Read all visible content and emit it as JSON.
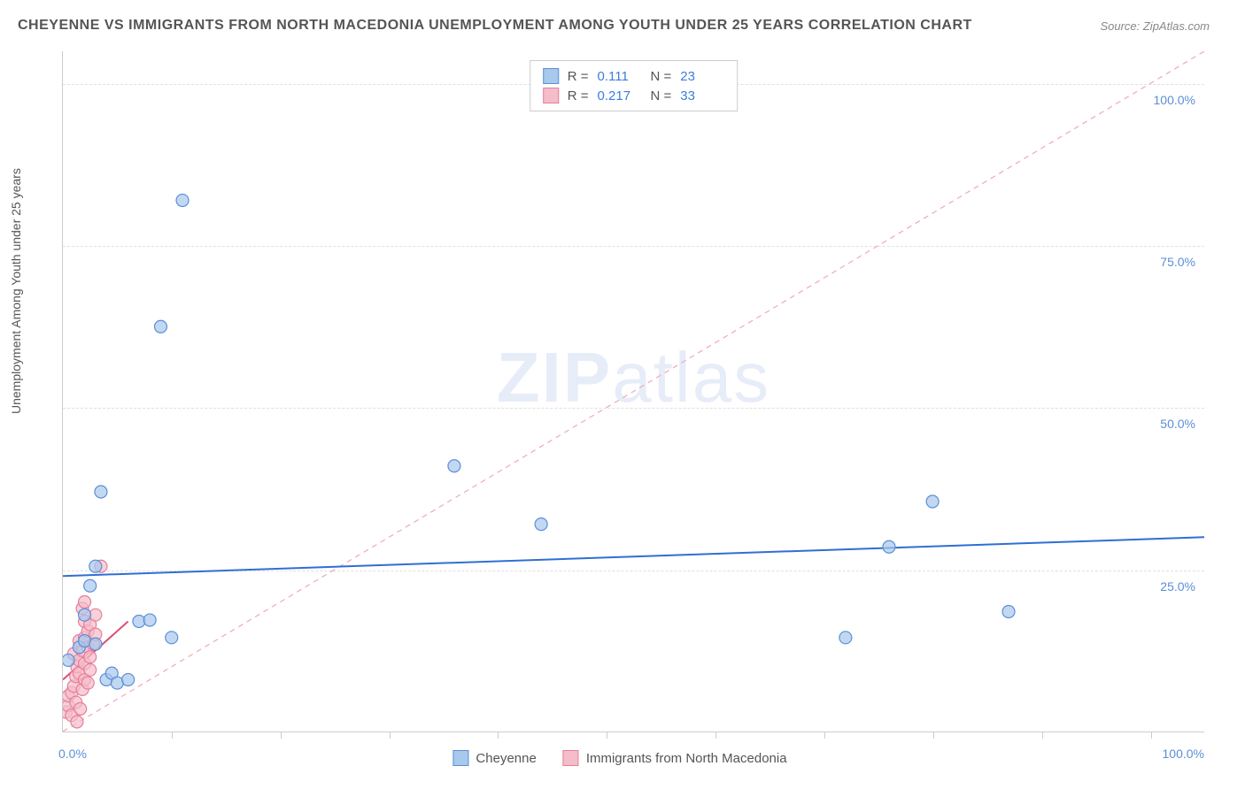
{
  "title": "CHEYENNE VS IMMIGRANTS FROM NORTH MACEDONIA UNEMPLOYMENT AMONG YOUTH UNDER 25 YEARS CORRELATION CHART",
  "source": "Source: ZipAtlas.com",
  "y_axis_label": "Unemployment Among Youth under 25 years",
  "watermark": {
    "part1": "ZIP",
    "part2": "atlas"
  },
  "chart": {
    "type": "scatter",
    "xlim": [
      0,
      105
    ],
    "ylim": [
      0,
      105
    ],
    "background_color": "#ffffff",
    "grid_color": "#e0e0e0",
    "grid_dash": true,
    "y_ticks": [
      25,
      50,
      75,
      100
    ],
    "y_tick_labels": [
      "25.0%",
      "50.0%",
      "75.0%",
      "100.0%"
    ],
    "x_ticks_minor": [
      10,
      20,
      30,
      40,
      50,
      60,
      70,
      80,
      90,
      100
    ],
    "x_tick_labels": [
      {
        "pos": 0,
        "label": "0.0%"
      },
      {
        "pos": 100,
        "label": "100.0%"
      }
    ],
    "marker_radius": 7,
    "marker_stroke_width": 1.2,
    "line_width": 2
  },
  "series": [
    {
      "name": "Cheyenne",
      "color_fill": "#a8c8ec",
      "color_stroke": "#5b8fd6",
      "r_value": "0.111",
      "n_value": "23",
      "points": [
        [
          0.5,
          11
        ],
        [
          1.5,
          13
        ],
        [
          2,
          18
        ],
        [
          2,
          14
        ],
        [
          2.5,
          22.5
        ],
        [
          3,
          25.5
        ],
        [
          3.5,
          37
        ],
        [
          4,
          8
        ],
        [
          4.5,
          9
        ],
        [
          5,
          7.5
        ],
        [
          6,
          8
        ],
        [
          7,
          17
        ],
        [
          8,
          17.2
        ],
        [
          9,
          62.5
        ],
        [
          10,
          14.5
        ],
        [
          11,
          82
        ],
        [
          36,
          41
        ],
        [
          44,
          32
        ],
        [
          72,
          14.5
        ],
        [
          76,
          28.5
        ],
        [
          80,
          35.5
        ],
        [
          87,
          18.5
        ],
        [
          3,
          13.5
        ]
      ],
      "trend": {
        "x1": 0,
        "y1": 24,
        "x2": 105,
        "y2": 30,
        "color": "#2e6fd4",
        "dash": false
      }
    },
    {
      "name": "Immigrants from North Macedonia",
      "color_fill": "#f5bcc9",
      "color_stroke": "#e57f9a",
      "r_value": "0.217",
      "n_value": "33",
      "points": [
        [
          0.3,
          3
        ],
        [
          0.5,
          4
        ],
        [
          0.5,
          5.5
        ],
        [
          0.8,
          2.5
        ],
        [
          0.8,
          6
        ],
        [
          1,
          7
        ],
        [
          1,
          12
        ],
        [
          1.2,
          4.5
        ],
        [
          1.2,
          8.5
        ],
        [
          1.3,
          10
        ],
        [
          1.5,
          9
        ],
        [
          1.5,
          11
        ],
        [
          1.5,
          14
        ],
        [
          1.8,
          6.5
        ],
        [
          1.8,
          12.5
        ],
        [
          1.8,
          19
        ],
        [
          2,
          8
        ],
        [
          2,
          10.5
        ],
        [
          2,
          14.5
        ],
        [
          2,
          17
        ],
        [
          2,
          20
        ],
        [
          2.3,
          7.5
        ],
        [
          2.3,
          13
        ],
        [
          2.3,
          15.5
        ],
        [
          2.5,
          9.5
        ],
        [
          2.5,
          11.5
        ],
        [
          2.5,
          16.5
        ],
        [
          2.8,
          13.5
        ],
        [
          3,
          15
        ],
        [
          3,
          18
        ],
        [
          3.5,
          25.5
        ],
        [
          1.3,
          1.5
        ],
        [
          1.6,
          3.5
        ]
      ],
      "trend": {
        "x1": 0,
        "y1": 8,
        "x2": 6,
        "y2": 17,
        "color": "#d94f76",
        "dash": false
      },
      "identity_line": {
        "x1": 0,
        "y1": 0,
        "x2": 105,
        "y2": 105,
        "color": "#f0a8b8",
        "dash": true
      }
    }
  ],
  "legend_top": {
    "r_label": "R  =",
    "n_label": "N  ="
  },
  "legend_bottom": [
    {
      "label": "Cheyenne",
      "fill": "#a8c8ec",
      "stroke": "#5b8fd6"
    },
    {
      "label": "Immigrants from North Macedonia",
      "fill": "#f5bcc9",
      "stroke": "#e57f9a"
    }
  ]
}
